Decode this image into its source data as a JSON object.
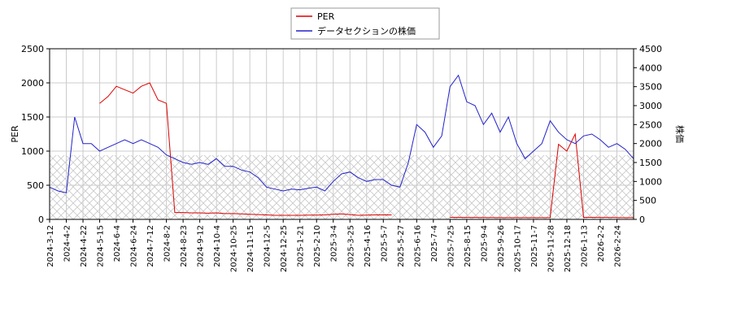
{
  "chart_data": {
    "type": "line",
    "x": [
      "2024-3-12",
      null,
      "2024-4-2",
      null,
      "2024-4-22",
      null,
      "2024-5-15",
      null,
      "2024-6-4",
      null,
      "2024-6-24",
      null,
      "2024-7-12",
      null,
      "2024-8-2",
      null,
      "2024-8-23",
      null,
      "2024-9-12",
      null,
      "2024-10-4",
      null,
      "2024-10-25",
      null,
      "2024-11-15",
      null,
      "2024-12-5",
      null,
      "2024-12-25",
      null,
      "2025-1-21",
      null,
      "2025-2-10",
      null,
      "2025-3-4",
      null,
      "2025-3-25",
      null,
      "2025-4-16",
      null,
      "2025-5-7",
      null,
      "2025-5-27",
      null,
      "2025-6-16",
      null,
      "2025-7-4",
      null,
      "2025-7-25",
      null,
      "2025-8-15",
      null,
      "2025-9-4",
      null,
      "2025-9-26",
      null,
      "2025-10-17",
      null,
      "2025-11-7",
      null,
      "2025-11-28",
      null,
      "2025-12-18",
      null,
      "2026-1-13",
      null,
      "2026-2-2",
      null,
      "2026-2-24",
      null,
      null
    ],
    "series": [
      {
        "name": "PER",
        "color": "#dd0000",
        "axis": "y",
        "values": [
          null,
          null,
          null,
          null,
          null,
          null,
          1700,
          1800,
          1950,
          1900,
          1850,
          1950,
          2000,
          1750,
          1700,
          100,
          100,
          95,
          95,
          90,
          95,
          85,
          85,
          80,
          75,
          70,
          65,
          60,
          60,
          60,
          60,
          62,
          62,
          65,
          75,
          80,
          70,
          60,
          62,
          65,
          65,
          65,
          null,
          null,
          null,
          null,
          null,
          null,
          30,
          30,
          28,
          28,
          26,
          26,
          25,
          25,
          25,
          25,
          25,
          25,
          25,
          1100,
          1000,
          1250,
          30,
          30,
          28,
          28,
          26,
          25,
          25
        ]
      },
      {
        "name": "データセクションの株価",
        "color": "#2222cc",
        "axis": "y2",
        "values": [
          850,
          750,
          700,
          2700,
          2000,
          2000,
          1800,
          1900,
          2000,
          2100,
          2000,
          2100,
          2000,
          1900,
          1700,
          1600,
          1500,
          1450,
          1500,
          1450,
          1600,
          1400,
          1400,
          1300,
          1250,
          1100,
          850,
          800,
          750,
          800,
          780,
          820,
          850,
          750,
          1000,
          1200,
          1250,
          1100,
          1000,
          1050,
          1050,
          900,
          850,
          1500,
          2500,
          2300,
          1900,
          2200,
          3500,
          3800,
          3100,
          3000,
          2500,
          2800,
          2300,
          2700,
          2000,
          1600,
          1800,
          2000,
          2600,
          2300,
          2100,
          2000,
          2200,
          2250,
          2100,
          1900,
          2000,
          1850,
          1600
        ]
      }
    ],
    "y_label": "PER",
    "y2_label": "株価",
    "ylim": [
      0,
      2500
    ],
    "yticks": [
      0,
      500,
      1000,
      1500,
      2000,
      2500
    ],
    "y2lim": [
      0,
      4500
    ],
    "y2ticks": [
      0,
      500,
      1000,
      1500,
      2000,
      2500,
      3000,
      3500,
      4000,
      4500
    ],
    "band": [
      0,
      940
    ],
    "grid": true,
    "legend": "top"
  }
}
